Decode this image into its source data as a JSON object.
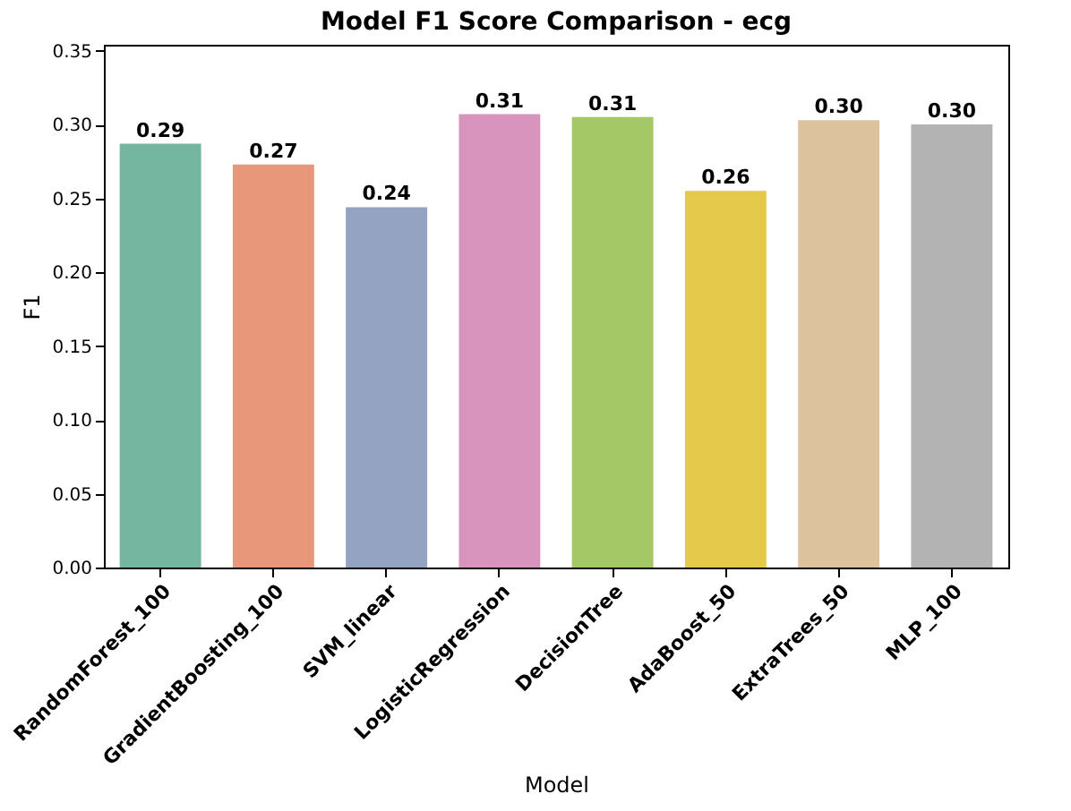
{
  "chart_data": {
    "type": "bar",
    "title": "Model F1 Score Comparison - ecg",
    "xlabel": "Model",
    "ylabel": "F1",
    "categories": [
      "RandomForest_100",
      "GradientBoosting_100",
      "SVM_linear",
      "LogisticRegression",
      "DecisionTree",
      "AdaBoost_50",
      "ExtraTrees_50",
      "MLP_100"
    ],
    "values": [
      0.287,
      0.273,
      0.244,
      0.307,
      0.305,
      0.255,
      0.303,
      0.3
    ],
    "value_labels": [
      "0.29",
      "0.27",
      "0.24",
      "0.31",
      "0.31",
      "0.26",
      "0.30",
      "0.30"
    ],
    "colors": [
      "#74b6a0",
      "#e9977a",
      "#93a3c1",
      "#d994bd",
      "#a3c865",
      "#e4c94b",
      "#dcc39e",
      "#b3b3b3"
    ],
    "ylim": [
      0,
      0.354
    ],
    "yticks": [
      {
        "value": 0,
        "label": "0.00"
      },
      0.05,
      {
        "value": 0.1,
        "label": "0.10"
      },
      0.15,
      {
        "value": 0.2,
        "label": "0.20"
      },
      0.25,
      {
        "value": 0.3,
        "label": "0.30"
      },
      0.35
    ],
    "grid": false
  }
}
